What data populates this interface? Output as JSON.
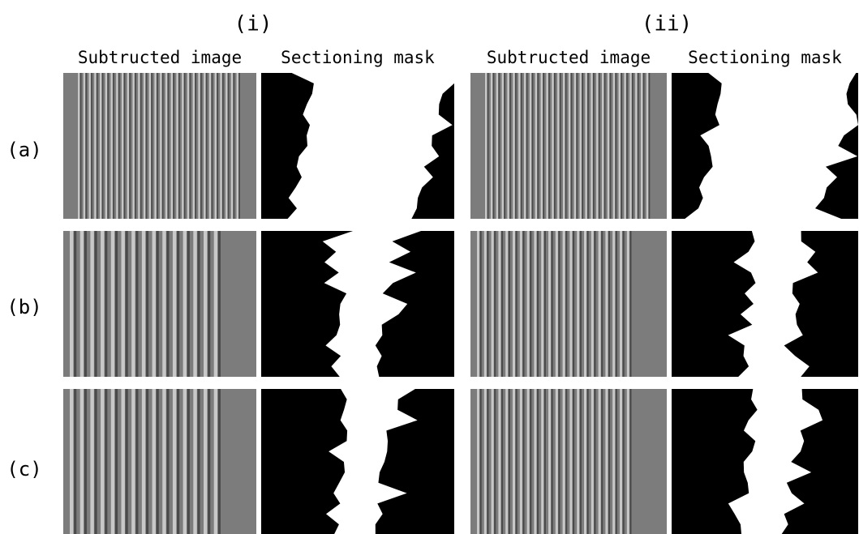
{
  "groups": [
    {
      "title": "(i)",
      "columns": [
        "Subtructed image",
        "Sectioning mask"
      ]
    },
    {
      "title": "(ii)",
      "columns": [
        "Subtructed image",
        "Sectioning mask"
      ]
    }
  ],
  "rows": [
    "(a)",
    "(b)",
    "(c)"
  ]
}
